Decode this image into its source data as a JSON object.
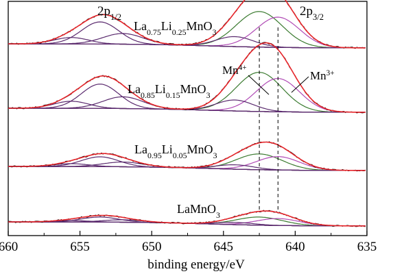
{
  "chart_data": {
    "type": "line",
    "xlabel": "binding energy/eV",
    "xlim": [
      660,
      635
    ],
    "x_ticks": [
      "660",
      "655",
      "650",
      "645",
      "640",
      "635"
    ],
    "peak_labels": {
      "p12_main": "2p",
      "p12_sub": "1/2",
      "p32_main": "2p",
      "p32_sub": "3/2",
      "mn4_main": "Mn",
      "mn4_sup": "4+",
      "mn3_main": "Mn",
      "mn3_sup": "3+"
    },
    "spectra": [
      {
        "parts": [
          "La",
          "0.75",
          "Li",
          "0.25",
          "MnO",
          "3"
        ],
        "peak": 1.0
      },
      {
        "parts": [
          "La",
          "0.85",
          "Li",
          "0.15",
          "MnO",
          "3"
        ],
        "peak": 1.1
      },
      {
        "parts": [
          "La",
          "0.95",
          "Li",
          "0.05",
          "MnO",
          "3"
        ],
        "peak": 0.48
      },
      {
        "parts": [
          "LaMnO",
          "3"
        ],
        "peak": 0.27
      }
    ],
    "components": [
      {
        "name": "Mn4+ 2p3/2",
        "center": 642.5,
        "width": 1.6
      },
      {
        "name": "Mn3+ 2p3/2",
        "center": 641.2,
        "width": 1.5
      },
      {
        "name": "satellite",
        "center": 644.2,
        "width": 1.3
      },
      {
        "name": "Mn4+ 2p1/2",
        "center": 653.6,
        "width": 1.3
      },
      {
        "name": "Mn3+ 2p1/2",
        "center": 652.0,
        "width": 1.4
      },
      {
        "name": "satellite 2p1/2",
        "center": 655.6,
        "width": 1.2
      }
    ],
    "reference_lines": [
      642.5,
      641.2
    ],
    "colors": {
      "raw": "#000000",
      "envelope": "#e8262b",
      "mn4": "#3a7a2f",
      "mn3": "#b04ab5",
      "satellite": "#5a2a6e",
      "background": "#5c2a2a"
    }
  }
}
